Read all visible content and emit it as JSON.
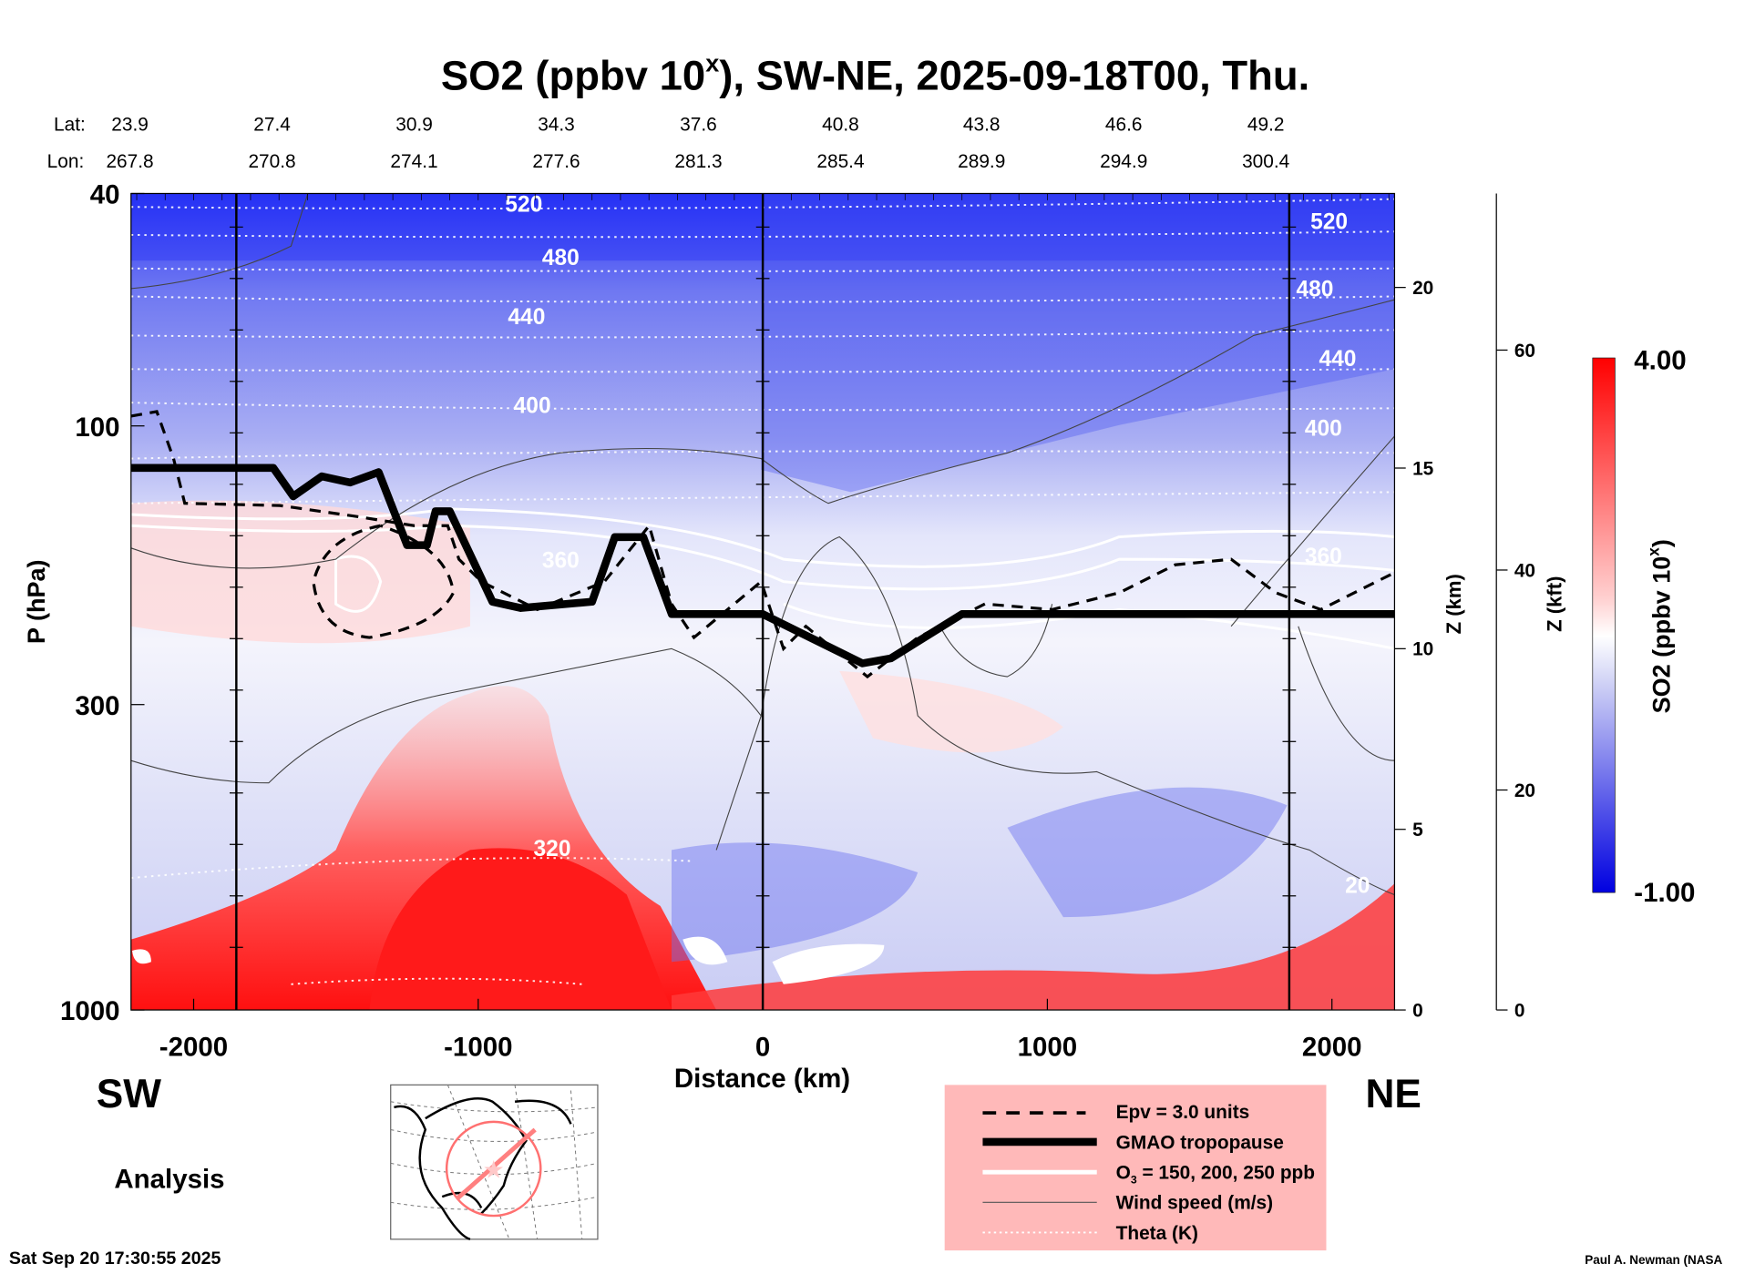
{
  "chart_data": {
    "type": "heatmap",
    "title": "SO2 (ppbv 10",
    "title_sup": "x",
    "title_rest": "), SW-NE, 2025-09-18T00, Thu.",
    "xlabel": "Distance (km)",
    "ylabel": "P (hPa)",
    "y2label": "Z (km)",
    "y3label": "Z (kft)",
    "xlim": [
      -2220,
      2220
    ],
    "ylim": [
      1000,
      40
    ],
    "yscale": "log",
    "x_ticks": [
      -2000,
      -1000,
      0,
      1000,
      2000
    ],
    "x_tick_labels": [
      "-2000",
      "-1000",
      "0",
      "1000",
      "2000"
    ],
    "y_ticks": [
      40,
      100,
      300,
      1000
    ],
    "y_tick_labels": [
      "40",
      "100",
      "300",
      "1000"
    ],
    "z_km_ticks": [
      0,
      5,
      10,
      15,
      20
    ],
    "z_km_labels": [
      "0",
      "5",
      "10",
      "15",
      "20"
    ],
    "z_kft_ticks": [
      0,
      20,
      40,
      60
    ],
    "z_kft_labels": [
      "0",
      "20",
      "40",
      "60"
    ],
    "vertical_lines_km": [
      -1850,
      0,
      1850
    ],
    "lat_label": "Lat:",
    "lon_label": "Lon:",
    "lat": [
      "23.9",
      "27.4",
      "30.9",
      "34.3",
      "37.6",
      "40.8",
      "43.8",
      "46.6",
      "49.2"
    ],
    "lon": [
      "267.8",
      "270.8",
      "274.1",
      "277.6",
      "281.3",
      "285.4",
      "289.9",
      "294.9",
      "300.4"
    ],
    "theta_labels": [
      {
        "text": "520",
        "x": -840,
        "p": 43
      },
      {
        "text": "480",
        "x": -710,
        "p": 53
      },
      {
        "text": "440",
        "x": -830,
        "p": 67
      },
      {
        "text": "400",
        "x": -810,
        "p": 95
      },
      {
        "text": "360",
        "x": -710,
        "p": 175
      },
      {
        "text": "320",
        "x": -740,
        "p": 545
      },
      {
        "text": "520",
        "x": 1990,
        "p": 46
      },
      {
        "text": "480",
        "x": 1940,
        "p": 60
      },
      {
        "text": "440",
        "x": 2020,
        "p": 79
      },
      {
        "text": "400",
        "x": 1970,
        "p": 104
      },
      {
        "text": "360",
        "x": 1970,
        "p": 172
      },
      {
        "text": "20",
        "x": 2090,
        "p": 630
      }
    ],
    "colorbar": {
      "min": -1.0,
      "max": 4.0,
      "min_label": "-1.00",
      "max_label": "4.00",
      "label": "SO2 (ppbv 10",
      "label_sup": "x",
      "label_end": ")",
      "colors": [
        "#0000e0",
        "#ffffff",
        "#ff0000"
      ]
    },
    "legend": [
      {
        "label": "Epv = 3.0 units",
        "style": "dashed"
      },
      {
        "label": "GMAO tropopause",
        "style": "thick"
      },
      {
        "label": "O",
        "sub": "3",
        "label_end": " = 150, 200, 250 ppb",
        "style": "white"
      },
      {
        "label": "Wind speed (m/s)",
        "style": "thin"
      },
      {
        "label": "Theta (K)",
        "style": "dotted"
      }
    ],
    "legend_placement": "bottom-right",
    "tropopause": [
      [
        -2220,
        118
      ],
      [
        -1720,
        118
      ],
      [
        -1650,
        132
      ],
      [
        -1550,
        122
      ],
      [
        -1450,
        125
      ],
      [
        -1350,
        120
      ],
      [
        -1250,
        160
      ],
      [
        -1180,
        160
      ],
      [
        -1150,
        140
      ],
      [
        -1100,
        140
      ],
      [
        -950,
        200
      ],
      [
        -850,
        205
      ],
      [
        -600,
        200
      ],
      [
        -520,
        155
      ],
      [
        -420,
        155
      ],
      [
        -320,
        210
      ],
      [
        0,
        210
      ],
      [
        350,
        255
      ],
      [
        450,
        250
      ],
      [
        700,
        210
      ],
      [
        1100,
        210
      ],
      [
        2220,
        210
      ]
    ]
  },
  "labels": {
    "sw": "SW",
    "ne": "NE",
    "analysis": "Analysis",
    "timestamp": "Sat Sep 20 17:30:55 2025",
    "credit": "Paul A. Newman (NASA"
  }
}
